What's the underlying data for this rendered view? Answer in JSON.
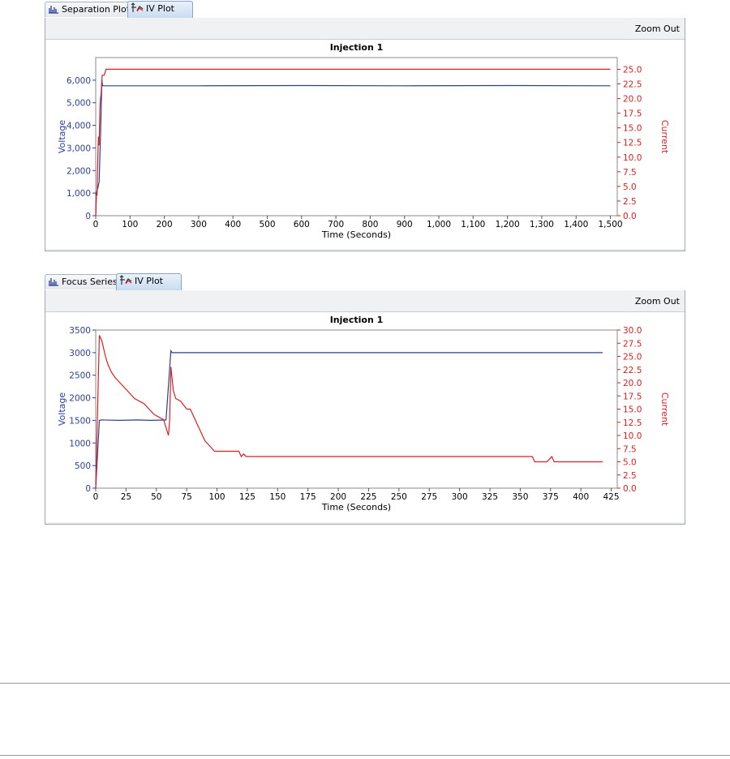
{
  "panels": [
    {
      "tabs": [
        {
          "label": "Separation Plot",
          "icon": "separation-plot-icon"
        },
        {
          "label": "IV Plot",
          "icon": "iv-plot-icon"
        }
      ],
      "zoom_label": "Zoom Out",
      "chart_data": {
        "type": "line",
        "title": "Injection 1",
        "xlabel": "Time (Seconds)",
        "ylabel": "Voltage",
        "y2label": "Current",
        "xlim": [
          0,
          1520
        ],
        "ylim": [
          0,
          7000
        ],
        "y2lim": [
          0,
          27
        ],
        "xticks": [
          0,
          100,
          200,
          300,
          400,
          500,
          600,
          700,
          800,
          900,
          1000,
          1100,
          1200,
          1300,
          1400,
          1500
        ],
        "xtick_labels": [
          "0",
          "100",
          "200",
          "300",
          "400",
          "500",
          "600",
          "700",
          "800",
          "900",
          "1,000",
          "1,100",
          "1,200",
          "1,300",
          "1,400",
          "1,500"
        ],
        "yticks": [
          0,
          1000,
          2000,
          3000,
          4000,
          5000,
          6000
        ],
        "ytick_labels": [
          "0",
          "1,000",
          "2,000",
          "3,000",
          "4,000",
          "5,000",
          "6,000"
        ],
        "y2ticks": [
          0,
          2.5,
          5,
          7.5,
          10,
          12.5,
          15,
          17.5,
          20,
          22.5,
          25
        ],
        "y2tick_labels": [
          "0.0",
          "2.5",
          "5.0",
          "7.5",
          "10.0",
          "12.5",
          "15.0",
          "17.5",
          "20.0",
          "22.5",
          "25.0"
        ],
        "grid": false,
        "colors": {
          "voltage": "#2b3f99",
          "current": "#dd1f1f"
        },
        "series": [
          {
            "name": "Voltage",
            "axis": "left",
            "x": [
              0,
              2,
              4,
              6,
              10,
              14,
              18,
              20,
              300,
              600,
              900,
              1200,
              1500
            ],
            "y": [
              0,
              1000,
              1150,
              1200,
              1500,
              3500,
              6000,
              5750,
              5750,
              5760,
              5750,
              5760,
              5750
            ]
          },
          {
            "name": "Current",
            "axis": "right",
            "x": [
              0,
              2,
              4,
              5,
              7,
              8,
              10,
              12,
              14,
              16,
              19,
              25,
              30,
              35,
              300,
              600,
              900,
              1200,
              1500
            ],
            "y": [
              0,
              3.5,
              3.5,
              7,
              12,
              13.5,
              12,
              18,
              20,
              21,
              24,
              24,
              25,
              25,
              25,
              25,
              25,
              25,
              25
            ]
          }
        ]
      }
    },
    {
      "tabs": [
        {
          "label": "Focus Series",
          "icon": "focus-series-icon"
        },
        {
          "label": "IV Plot",
          "icon": "iv-plot-icon"
        }
      ],
      "zoom_label": "Zoom Out",
      "chart_data": {
        "type": "line",
        "title": "Injection 1",
        "xlabel": "Time (Seconds)",
        "ylabel": "Voltage",
        "y2label": "Current",
        "xlim": [
          0,
          430
        ],
        "ylim": [
          0,
          3500
        ],
        "y2lim": [
          0,
          30
        ],
        "xticks": [
          0,
          25,
          50,
          75,
          100,
          125,
          150,
          175,
          200,
          225,
          250,
          275,
          300,
          325,
          350,
          375,
          400,
          425
        ],
        "xtick_labels": [
          "0",
          "25",
          "50",
          "75",
          "100",
          "125",
          "150",
          "175",
          "200",
          "225",
          "250",
          "275",
          "300",
          "325",
          "350",
          "375",
          "400",
          "425"
        ],
        "yticks": [
          0,
          500,
          1000,
          1500,
          2000,
          2500,
          3000,
          3500
        ],
        "ytick_labels": [
          "0",
          "500",
          "1000",
          "1500",
          "2000",
          "2500",
          "3000",
          "3500"
        ],
        "y2ticks": [
          0,
          2.5,
          5,
          7.5,
          10,
          12.5,
          15,
          17.5,
          20,
          22.5,
          25,
          27.5,
          30
        ],
        "y2tick_labels": [
          "0.0",
          "2.5",
          "5.0",
          "7.5",
          "10.0",
          "12.5",
          "15.0",
          "17.5",
          "20.0",
          "22.5",
          "25.0",
          "27.5",
          "30.0"
        ],
        "grid": false,
        "colors": {
          "voltage": "#2b3f99",
          "current": "#dd1f1f"
        },
        "series": [
          {
            "name": "Voltage",
            "axis": "left",
            "x": [
              0,
              3,
              5,
              20,
              35,
              45,
              58,
              62,
              63,
              65,
              100,
              200,
              300,
              350,
              418
            ],
            "y": [
              0,
              1500,
              1510,
              1500,
              1510,
              1500,
              1510,
              3040,
              3000,
              3000,
              3000,
              3000,
              3000,
              3000,
              3000
            ]
          },
          {
            "name": "Current",
            "axis": "right",
            "x": [
              0,
              3,
              5,
              8,
              10,
              13,
              16,
              20,
              24,
              28,
              32,
              36,
              40,
              44,
              48,
              52,
              56,
              58,
              60,
              61,
              62,
              64,
              66,
              70,
              75,
              78,
              82,
              86,
              90,
              94,
              98,
              100,
              110,
              118,
              120,
              122,
              124,
              126,
              130,
              160,
              200,
              250,
              300,
              360,
              362,
              372,
              374,
              376,
              378,
              400,
              418
            ],
            "y": [
              0,
              29,
              28,
              25,
              23.5,
              22,
              21,
              20,
              19,
              18,
              17,
              16.5,
              16,
              15,
              14,
              13.5,
              13,
              11.5,
              10,
              13,
              23,
              18.5,
              17,
              16.5,
              15,
              15,
              13,
              11,
              9,
              8,
              7,
              7,
              7,
              7,
              6,
              6.5,
              6,
              6,
              6,
              6,
              6,
              6,
              6,
              6,
              5,
              5,
              5.5,
              6,
              5,
              5,
              5
            ]
          }
        ]
      }
    }
  ]
}
